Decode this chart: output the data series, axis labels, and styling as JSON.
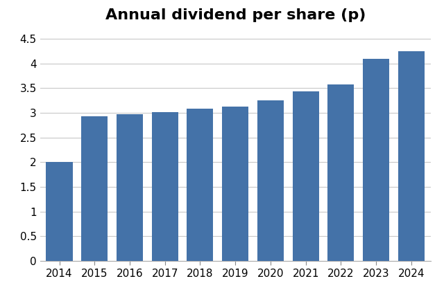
{
  "title": "Annual dividend per share (p)",
  "years": [
    2014,
    2015,
    2016,
    2017,
    2018,
    2019,
    2020,
    2021,
    2022,
    2023,
    2024
  ],
  "values": [
    2.0,
    2.93,
    2.97,
    3.01,
    3.08,
    3.13,
    3.25,
    3.43,
    3.58,
    4.1,
    4.25
  ],
  "bar_color": "#4472a8",
  "ylim": [
    0,
    4.7
  ],
  "yticks": [
    0,
    0.5,
    1.0,
    1.5,
    2.0,
    2.5,
    3.0,
    3.5,
    4.0,
    4.5
  ],
  "ytick_labels": [
    "0",
    "0.5",
    "1",
    "1.5",
    "2",
    "2.5",
    "3",
    "3.5",
    "4",
    "4.5"
  ],
  "title_fontsize": 16,
  "tick_fontsize": 11,
  "background_color": "#ffffff",
  "grid_color": "#c8c8c8"
}
